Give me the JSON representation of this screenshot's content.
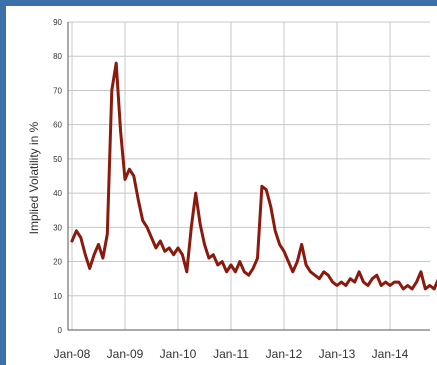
{
  "chart_data": {
    "type": "line",
    "title": "",
    "xlabel": "",
    "ylabel": "Implied Volatility in %",
    "ylim": [
      0,
      90
    ],
    "yticks": [
      "0",
      "10",
      "20",
      "30",
      "40",
      "50",
      "60",
      "70",
      "80",
      "90"
    ],
    "xticks": [
      "Jan-08",
      "Jan-09",
      "Jan-10",
      "Jan-11",
      "Jan-12",
      "Jan-13",
      "Jan-14"
    ],
    "grid": true,
    "legend": "none",
    "line_color": "#8b1a0e",
    "series": [
      {
        "x": [
          "2008-01",
          "2008-02",
          "2008-03",
          "2008-04",
          "2008-05",
          "2008-06",
          "2008-07",
          "2008-08",
          "2008-09",
          "2008-10",
          "2008-11",
          "2008-12",
          "2009-01",
          "2009-02",
          "2009-03",
          "2009-04",
          "2009-05",
          "2009-06",
          "2009-07",
          "2009-08",
          "2009-09",
          "2009-10",
          "2009-11",
          "2009-12",
          "2010-01",
          "2010-02",
          "2010-03",
          "2010-04",
          "2010-05",
          "2010-06",
          "2010-07",
          "2010-08",
          "2010-09",
          "2010-10",
          "2010-11",
          "2010-12",
          "2011-01",
          "2011-02",
          "2011-03",
          "2011-04",
          "2011-05",
          "2011-06",
          "2011-07",
          "2011-08",
          "2011-09",
          "2011-10",
          "2011-11",
          "2011-12",
          "2012-01",
          "2012-02",
          "2012-03",
          "2012-04",
          "2012-05",
          "2012-06",
          "2012-07",
          "2012-08",
          "2012-09",
          "2012-10",
          "2012-11",
          "2012-12",
          "2013-01",
          "2013-02",
          "2013-03",
          "2013-04",
          "2013-05",
          "2013-06",
          "2013-07",
          "2013-08",
          "2013-09",
          "2013-10",
          "2013-11",
          "2013-12",
          "2014-01",
          "2014-02",
          "2014-03",
          "2014-04",
          "2014-05",
          "2014-06",
          "2014-07",
          "2014-08",
          "2014-09",
          "2014-10",
          "2014-11",
          "2014-12",
          "2015-01"
        ],
        "values": [
          26,
          29,
          27,
          22,
          18,
          22,
          25,
          21,
          28,
          70,
          78,
          58,
          44,
          47,
          45,
          38,
          32,
          30,
          27,
          24,
          26,
          23,
          24,
          22,
          24,
          22,
          17,
          30,
          40,
          31,
          25,
          21,
          22,
          19,
          20,
          17,
          19,
          17,
          20,
          17,
          16,
          18,
          21,
          42,
          41,
          36,
          29,
          25,
          23,
          20,
          17,
          20,
          25,
          19,
          17,
          16,
          15,
          17,
          16,
          14,
          13,
          14,
          13,
          15,
          14,
          17,
          14,
          13,
          15,
          16,
          13,
          14,
          13,
          14,
          14,
          12,
          13,
          12,
          14,
          17,
          12,
          13,
          12,
          15,
          21
        ]
      }
    ]
  }
}
